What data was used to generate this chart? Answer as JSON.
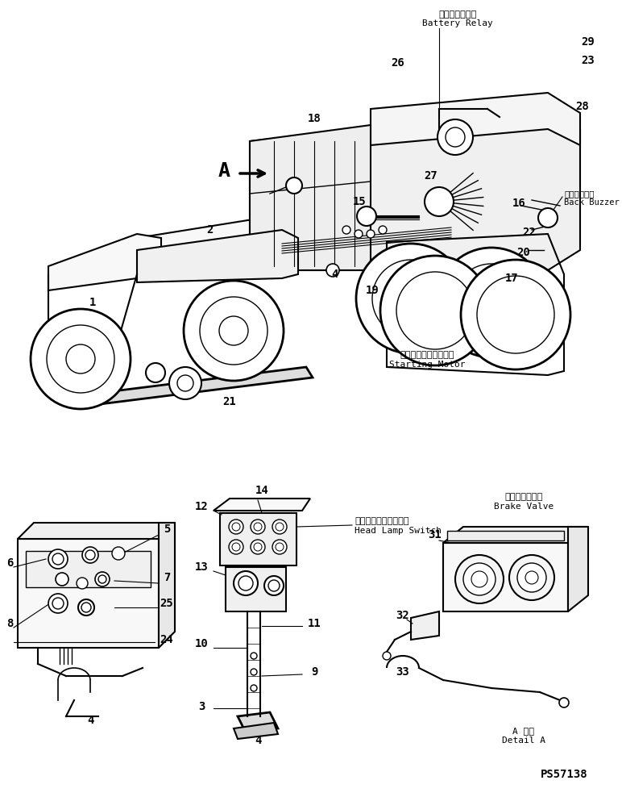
{
  "bg_color": "#ffffff",
  "fig_width": 7.72,
  "fig_height": 9.88,
  "dpi": 100,
  "text_color": "#000000",
  "line_color": "#000000",
  "labels": {
    "battery_relay_jp": "バッテリリレー",
    "battery_relay_en": "Battery Relay",
    "back_buzzer_jp": "バックブザー",
    "back_buzzer_en": "Back Buzzer",
    "starting_motor_jp": "スターティングモータ",
    "starting_motor_en": "Starting Motor",
    "head_lamp_switch_jp": "ヘッドランプスイッチ",
    "head_lamp_switch_en": "Head Lamp Switch",
    "brake_valve_jp": "ブレーキバルブ",
    "brake_valve_en": "Brake Valve",
    "detail_a_jp": "A 詳細",
    "detail_a_en": "Detail A",
    "part_number": "PS57138",
    "label_A": "A"
  }
}
